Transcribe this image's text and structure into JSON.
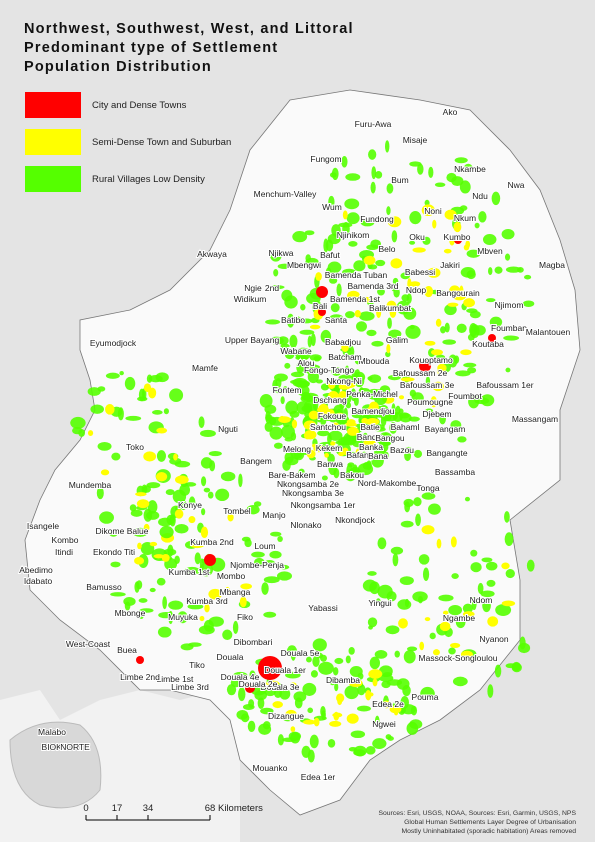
{
  "title": {
    "lines": [
      "Northwest, Southwest, West, and Littoral",
      "Predominant type of Settlement",
      "Population Distribution"
    ]
  },
  "legend": [
    {
      "label": "City and Dense Towns",
      "color": "#ff0000"
    },
    {
      "label": "Semi-Dense Town and Suburban",
      "color": "#ffff00"
    },
    {
      "label": "Rural Villages Low Density",
      "color": "#55ff00"
    }
  ],
  "place_labels": [
    "Furu-Awa",
    "Ako",
    "Misaje",
    "Fungom",
    "Nkambe",
    "Bum",
    "Nwa",
    "Menchum-Valley",
    "Wum",
    "Ndu",
    "Noni",
    "Fundong",
    "Nkum",
    "Njinikom",
    "Oku",
    "Kumbo",
    "Akwaya",
    "Njikwa",
    "Belo",
    "Mbven",
    "Bafut",
    "Mbengwi",
    "Bamenda Tuban",
    "Babessi",
    "Jakiri",
    "Magba",
    "Ngie",
    "2nd",
    "Bamenda 3rd",
    "Ndop",
    "Bangourain",
    "Widikum",
    "Bali",
    "Bamenda 1st",
    "Balikumbat",
    "Njimom",
    "Batibo",
    "Santa",
    "Foumban",
    "Malantouen",
    "Eyumodjock",
    "Upper Bayang",
    "Babadjou",
    "Galim",
    "Koutaba",
    "Wabane",
    "Mbouda",
    "Kouoptamo",
    "Batcham",
    "Bafoussam 2e",
    "Alou",
    "Fongo-Tongo",
    "Mamfe",
    "Nkong-Ni",
    "Bafoussam 3e",
    "Bafoussam 1er",
    "Penka-Michel",
    "Foumbot",
    "Fontem",
    "Dschang",
    "Poumougne",
    "Djebem",
    "Bamendjou",
    "Fokoue",
    "Massangam",
    "Nguti",
    "Santchou",
    "Batie",
    "Bahaml",
    "Bayangam",
    "Toko",
    "Bandja",
    "Bangou",
    "Melong",
    "Kekem",
    "Banka",
    "Bafang",
    "Bana",
    "Bazou",
    "Bangangte",
    "Bangem",
    "Banwa",
    "Bassamba",
    "Bare-Bakem",
    "Bakou",
    "Nord-Makombe",
    "Mundemba",
    "Tonga",
    "Nkongsamba 2e",
    "Nkongsamba 3e",
    "Konye",
    "Nkongsamba 1er",
    "Tombel",
    "Manjo",
    "Nlonako",
    "Nkondjock",
    "Isangele",
    "Dikome Balue",
    "Kombo",
    "Itindi",
    "Abedimo",
    "Idabato",
    "Ekondo Titi",
    "Kumba 2nd",
    "Loum",
    "Kumba 1st",
    "Njombe-Penja",
    "Mombo",
    "Bamusso",
    "Mbanga",
    "Kumba 3rd",
    "Yabassi",
    "Yingui",
    "Ndom",
    "Mbonge",
    "Muyuka",
    "Fiko",
    "Ngambe",
    "Nyanon",
    "Dibombari",
    "West-Coast",
    "Buea",
    "Douala 5e",
    "Massock-Songloulou",
    "Tiko",
    "Douala",
    "Douala 1er",
    "Limbe 1st",
    "Limbe 2nd",
    "Limbe 3rd",
    "Douala 4e",
    "Douala 3e",
    "Douala 2e",
    "Dibamba",
    "Pouma",
    "Edea 2e",
    "Dizangue",
    "Ngwei",
    "Mouanko",
    "Edea 1er",
    "Malabo",
    "BIOKO",
    "NORTE"
  ],
  "scale_bar": {
    "ticks": [
      "0",
      "17",
      "34",
      "68"
    ],
    "unit": "Kilometers"
  },
  "sources": [
    "Sources: Esri, USGS, NOAA, Sources: Esri, Garmin, USGS, NPS",
    "Global Human Settlements Layer Degree of Urbanisation",
    "Mostly Uninhabitated (sporadic habitation) Areas removed"
  ]
}
